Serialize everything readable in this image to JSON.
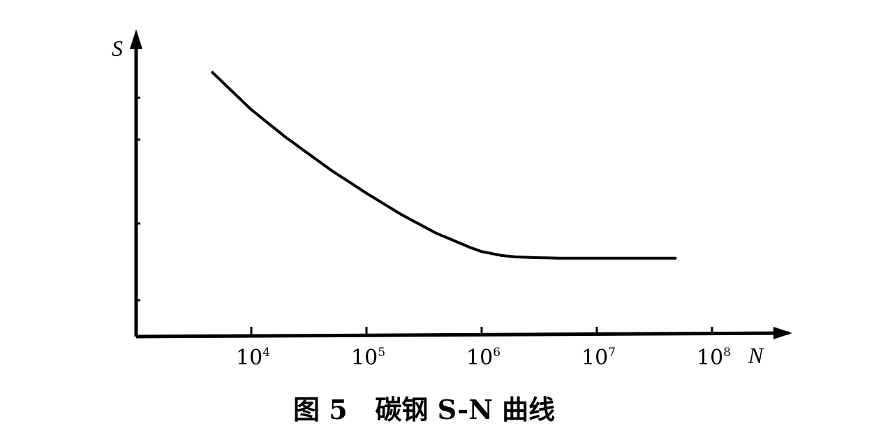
{
  "chart_data": {
    "type": "line",
    "title": "图 5   碳钢 S-N 曲线",
    "xlabel": "N",
    "ylabel": "S",
    "x_scale": "log",
    "xlim": [
      1000,
      100000000
    ],
    "x_ticks": [
      {
        "value": 10000,
        "base": "10",
        "exp": "4"
      },
      {
        "value": 100000,
        "base": "10",
        "exp": "5"
      },
      {
        "value": 1000000,
        "base": "10",
        "exp": "6"
      },
      {
        "value": 10000000,
        "base": "10",
        "exp": "7"
      },
      {
        "value": 100000000,
        "base": "10",
        "exp": "8"
      }
    ],
    "ylim": [
      0,
      1
    ],
    "y_tick_labels": false,
    "grid": false,
    "legend": "none",
    "line_color": "#000000",
    "series": [
      {
        "x": [
          4600,
          10000,
          20000,
          50000,
          100000,
          200000,
          400000,
          800000,
          1000000,
          1500000,
          2000000,
          3000000,
          5000000,
          10000000,
          20000000,
          48000000
        ],
        "values": [
          0.99,
          0.85,
          0.745,
          0.62,
          0.535,
          0.455,
          0.385,
          0.33,
          0.315,
          0.3,
          0.295,
          0.292,
          0.29,
          0.29,
          0.29,
          0.29
        ]
      }
    ]
  }
}
